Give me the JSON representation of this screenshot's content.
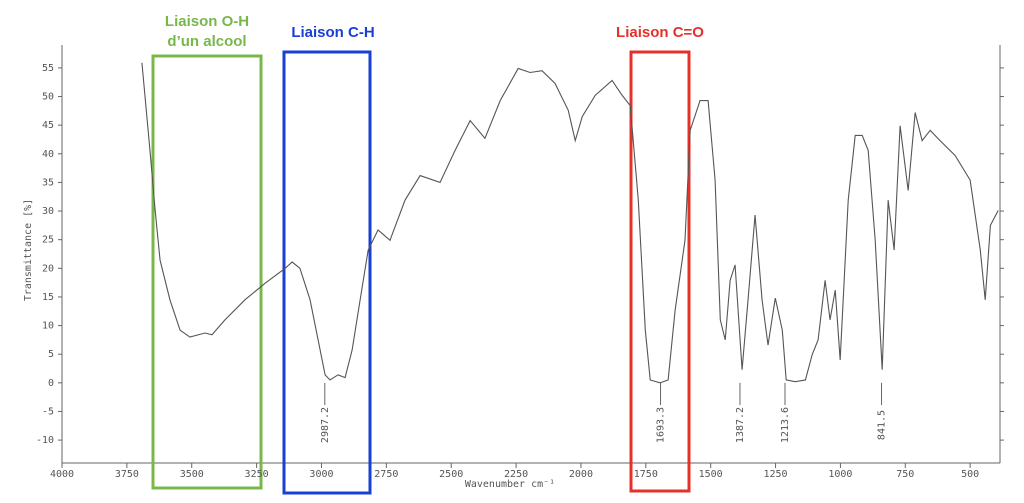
{
  "chart_data": {
    "type": "line",
    "x_label": "Wavenumber cm⁻¹",
    "y_label": "Transmittance [%]",
    "xlim": [
      4000,
      385
    ],
    "ylim": [
      -14,
      59
    ],
    "xticks": [
      4000,
      3750,
      3500,
      3250,
      3000,
      2750,
      2500,
      2250,
      2000,
      1750,
      1500,
      1250,
      1000,
      750,
      500
    ],
    "yticks": [
      -10,
      -5,
      0,
      5,
      10,
      15,
      20,
      25,
      30,
      35,
      40,
      45,
      50,
      55
    ],
    "series": [
      {
        "color": "#555555",
        "x": [
          3692,
          3661,
          3641,
          3622,
          3584,
          3545,
          3507,
          3449,
          3422,
          3372,
          3295,
          3217,
          3140,
          3113,
          3083,
          3044,
          3013,
          2986,
          2967,
          2936,
          2909,
          2882,
          2851,
          2820,
          2782,
          2736,
          2678,
          2620,
          2543,
          2485,
          2427,
          2370,
          2311,
          2242,
          2196,
          2150,
          2100,
          2049,
          2022,
          1995,
          1945,
          1880,
          1841,
          1810,
          1779,
          1752,
          1733,
          1695,
          1664,
          1637,
          1599,
          1579,
          1541,
          1510,
          1483,
          1463,
          1444,
          1425,
          1406,
          1379,
          1356,
          1329,
          1302,
          1279,
          1251,
          1224,
          1209,
          1174,
          1135,
          1109,
          1086,
          1059,
          1040,
          1020,
          1001,
          970,
          943,
          916,
          893,
          866,
          839,
          816,
          793,
          770,
          739,
          712,
          685,
          654,
          616,
          558,
          500,
          461,
          442,
          422,
          392
        ],
        "values": [
          55.9,
          40.6,
          30.1,
          21.4,
          14.5,
          9.2,
          8.0,
          8.7,
          8.4,
          11.0,
          14.5,
          17.4,
          20.0,
          21.1,
          20.0,
          14.5,
          7.5,
          1.4,
          0.5,
          1.4,
          0.9,
          5.7,
          14.5,
          23.2,
          26.7,
          24.9,
          31.9,
          36.2,
          35.0,
          40.6,
          45.8,
          42.7,
          49.3,
          54.9,
          54.2,
          54.5,
          52.3,
          47.6,
          42.3,
          46.5,
          50.2,
          52.8,
          50.2,
          48.4,
          31.9,
          9.2,
          0.5,
          0,
          0.5,
          12.7,
          24.9,
          44.1,
          49.3,
          49.3,
          35.4,
          11.0,
          7.5,
          17.9,
          20.6,
          2.3,
          14.5,
          29.3,
          14.5,
          6.6,
          14.8,
          9.2,
          0.5,
          0.2,
          0.5,
          4.9,
          7.5,
          17.9,
          11.0,
          16.2,
          4.0,
          31.9,
          43.2,
          43.2,
          40.6,
          24.9,
          2.3,
          31.9,
          23.2,
          44.9,
          33.6,
          47.2,
          42.3,
          44.1,
          42.3,
          39.7,
          35.4,
          23.2,
          14.5,
          27.5,
          30.1
        ]
      }
    ],
    "peaks": [
      2987.2,
      1693.3,
      1387.2,
      1213.6,
      841.5
    ],
    "annotations": [
      {
        "lines": [
          "Liaison O-H",
          "d’un alcool"
        ],
        "color": "#78b84a"
      },
      {
        "lines": [
          "Liaison C-H"
        ],
        "color": "#1a3fd6"
      },
      {
        "lines": [
          "Liaison C=O"
        ],
        "color": "#e8302a"
      }
    ]
  }
}
